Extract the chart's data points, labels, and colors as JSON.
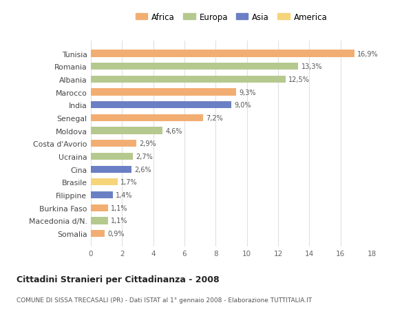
{
  "countries": [
    "Tunisia",
    "Romania",
    "Albania",
    "Marocco",
    "India",
    "Senegal",
    "Moldova",
    "Costa d'Avorio",
    "Ucraina",
    "Cina",
    "Brasile",
    "Filippine",
    "Burkina Faso",
    "Macedonia d/N.",
    "Somalia"
  ],
  "values": [
    16.9,
    13.3,
    12.5,
    9.3,
    9.0,
    7.2,
    4.6,
    2.9,
    2.7,
    2.6,
    1.7,
    1.4,
    1.1,
    1.1,
    0.9
  ],
  "labels": [
    "16,9%",
    "13,3%",
    "12,5%",
    "9,3%",
    "9,0%",
    "7,2%",
    "4,6%",
    "2,9%",
    "2,7%",
    "2,6%",
    "1,7%",
    "1,4%",
    "1,1%",
    "1,1%",
    "0,9%"
  ],
  "continents": [
    "Africa",
    "Europa",
    "Europa",
    "Africa",
    "Asia",
    "Africa",
    "Europa",
    "Africa",
    "Europa",
    "Asia",
    "America",
    "Asia",
    "Africa",
    "Europa",
    "Africa"
  ],
  "colors": {
    "Africa": "#F2AE72",
    "Europa": "#B5C98E",
    "Asia": "#6B7FC4",
    "America": "#F5D47A"
  },
  "legend_order": [
    "Africa",
    "Europa",
    "Asia",
    "America"
  ],
  "title": "Cittadini Stranieri per Cittadinanza - 2008",
  "subtitle": "COMUNE DI SISSA TRECASALI (PR) - Dati ISTAT al 1° gennaio 2008 - Elaborazione TUTTITALIA.IT",
  "xlim": [
    0,
    18
  ],
  "xticks": [
    0,
    2,
    4,
    6,
    8,
    10,
    12,
    14,
    16,
    18
  ],
  "background_color": "#ffffff",
  "grid_color": "#e0e0e0"
}
